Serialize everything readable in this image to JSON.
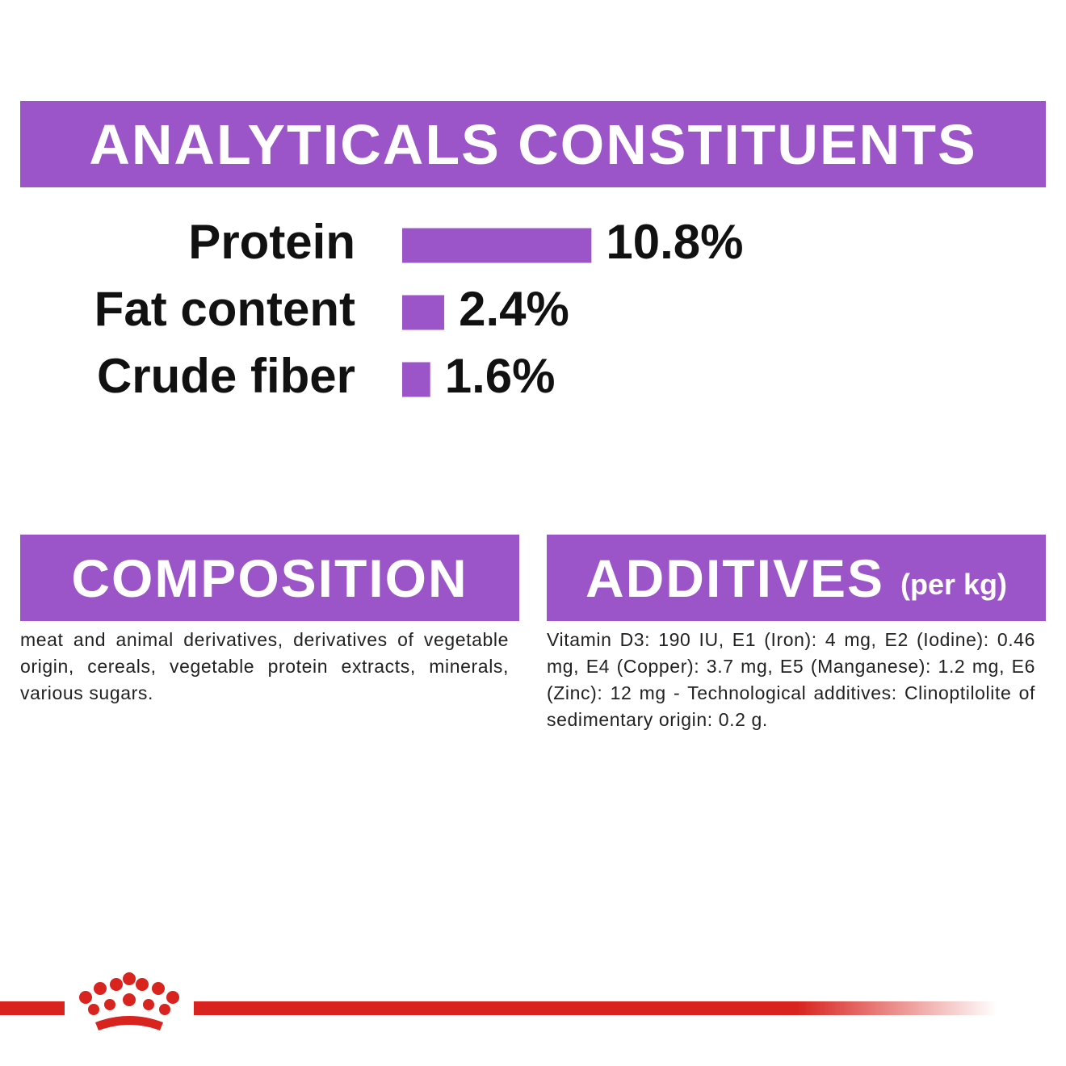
{
  "header": {
    "title": "ANALYTICALS CONSTITUENTS"
  },
  "chart_data": {
    "type": "bar",
    "categories": [
      "Protein",
      "Fat content",
      "Crude fiber"
    ],
    "values": [
      10.8,
      2.4,
      1.6
    ],
    "value_labels": [
      "10.8%",
      "2.4%",
      "1.6%"
    ],
    "color": "#9c55c8"
  },
  "composition": {
    "title": "COMPOSITION",
    "text": "meat and animal derivatives, derivatives of vegetable origin, cereals, vegetable protein extracts, minerals, various sugars."
  },
  "additives": {
    "title": "ADDITIVES",
    "unit": "(per kg)",
    "text": "Vitamin D3: 190 IU, E1 (Iron): 4 mg, E2 (Iodine): 0.46 mg, E4 (Copper): 3.7 mg, E5 (Manganese): 1.2 mg, E6 (Zinc): 12 mg - Technological additives: Clinoptilolite of sedimentary origin: 0.2 g."
  }
}
